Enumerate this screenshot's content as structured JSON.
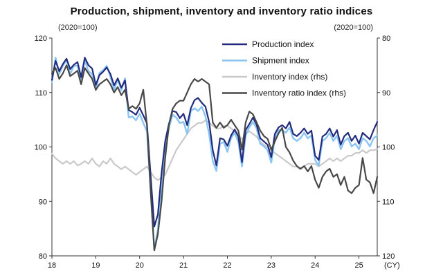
{
  "chart_data": {
    "type": "line",
    "title": "Production, shipment, inventory and inventory ratio indices",
    "left_axis": {
      "label": "(2020=100)",
      "min": 80,
      "max": 120,
      "ticks": [
        120,
        110,
        100,
        90,
        80
      ],
      "inverted": false
    },
    "right_axis": {
      "label": "(2020=100)",
      "min": 80,
      "max": 120,
      "ticks": [
        80,
        90,
        100,
        110,
        120
      ],
      "inverted": true
    },
    "x_axis": {
      "start_year": 2018,
      "points_per_year": 12,
      "tick_years": [
        2018,
        2019,
        2020,
        2021,
        2022,
        2023,
        2024,
        2025
      ],
      "tick_labels": [
        "18",
        "19",
        "20",
        "21",
        "22",
        "23",
        "24",
        "25"
      ],
      "suffix_label": "(CY)"
    },
    "grid": false,
    "legend_position": "upper-center-inside",
    "draw_order": [
      2,
      1,
      0,
      3
    ],
    "series": [
      {
        "id": "production",
        "name": "Production index",
        "axis": "left",
        "color": "#232c7c",
        "width": 2.2,
        "values": [
          112.3,
          115.8,
          113.9,
          115.2,
          116.2,
          114.3,
          115.1,
          115.6,
          112.8,
          116.4,
          115.0,
          114.4,
          111.4,
          113.2,
          113.8,
          114.6,
          113.4,
          111.3,
          112.6,
          110.9,
          112.2,
          106.8,
          106.4,
          105.9,
          107.2,
          105.8,
          104.3,
          94.8,
          85.4,
          87.6,
          95.2,
          101.1,
          104.2,
          106.6,
          106.4,
          105.3,
          106.1,
          104.0,
          107.1,
          108.6,
          109.0,
          108.1,
          107.4,
          104.6,
          99.4,
          96.6,
          101.6,
          101.4,
          100.2,
          102.1,
          103.2,
          101.9,
          97.2,
          103.1,
          104.2,
          105.4,
          104.1,
          101.6,
          101.0,
          100.4,
          98.1,
          102.4,
          103.6,
          104.0,
          103.4,
          104.6,
          102.4,
          102.0,
          102.6,
          103.4,
          102.4,
          103.0,
          98.4,
          97.6,
          101.9,
          102.4,
          103.4,
          101.9,
          103.1,
          100.4,
          102.0,
          102.6,
          101.1,
          102.1,
          100.6,
          102.6,
          102.0,
          101.4,
          103.1,
          104.6
        ]
      },
      {
        "id": "shipment",
        "name": "Shipment index",
        "axis": "left",
        "color": "#89c4f4",
        "width": 2.4,
        "values": [
          111.9,
          116.4,
          113.4,
          114.9,
          116.0,
          113.4,
          114.9,
          114.9,
          112.4,
          115.9,
          113.9,
          113.4,
          110.4,
          113.6,
          114.1,
          114.9,
          112.9,
          110.4,
          112.4,
          110.4,
          112.6,
          105.4,
          105.6,
          104.9,
          106.1,
          104.4,
          102.9,
          91.9,
          81.2,
          84.9,
          93.4,
          99.4,
          103.4,
          105.9,
          105.4,
          104.4,
          104.6,
          102.4,
          106.6,
          107.1,
          106.6,
          107.4,
          105.6,
          102.4,
          97.4,
          95.6,
          100.6,
          100.9,
          99.1,
          101.6,
          102.6,
          100.9,
          96.4,
          102.1,
          103.6,
          104.6,
          103.4,
          100.6,
          100.1,
          99.4,
          97.1,
          101.6,
          103.1,
          103.1,
          102.6,
          103.6,
          101.6,
          101.1,
          101.6,
          102.6,
          101.6,
          102.1,
          97.6,
          96.6,
          101.1,
          101.6,
          102.6,
          101.1,
          102.1,
          99.6,
          101.1,
          101.6,
          100.1,
          100.6,
          99.6,
          101.6,
          101.1,
          100.1,
          101.6,
          102.1
        ]
      },
      {
        "id": "inventory",
        "name": "Inventory index (rhs)",
        "axis": "right",
        "color": "#c9c9c9",
        "width": 2.2,
        "values": [
          101.2,
          102.1,
          102.6,
          103.1,
          102.6,
          103.1,
          102.6,
          103.4,
          103.1,
          102.6,
          103.1,
          102.1,
          103.1,
          103.6,
          102.6,
          103.1,
          102.1,
          103.1,
          103.6,
          104.1,
          103.6,
          104.1,
          104.6,
          105.1,
          104.6,
          104.1,
          103.6,
          104.6,
          105.6,
          106.1,
          105.6,
          105.1,
          103.6,
          102.1,
          100.6,
          99.6,
          98.6,
          97.6,
          96.6,
          96.1,
          95.6,
          95.6,
          95.1,
          95.6,
          96.1,
          96.6,
          96.6,
          96.1,
          96.1,
          96.6,
          97.1,
          97.6,
          98.6,
          97.6,
          97.1,
          97.6,
          98.1,
          99.1,
          99.6,
          100.1,
          100.6,
          101.1,
          101.6,
          102.1,
          102.6,
          103.1,
          103.6,
          103.6,
          104.1,
          103.6,
          103.1,
          103.1,
          103.1,
          103.6,
          103.1,
          102.6,
          102.1,
          102.6,
          102.1,
          102.6,
          102.1,
          101.6,
          101.6,
          101.1,
          101.1,
          100.6,
          101.1,
          100.6,
          100.6,
          100.4
        ]
      },
      {
        "id": "inventory-ratio",
        "name": "Inventory ratio index (rhs)",
        "axis": "right",
        "color": "#484848",
        "width": 2.2,
        "values": [
          86.5,
          85.5,
          87.5,
          86.5,
          85.0,
          87.0,
          86.5,
          86.0,
          88.5,
          85.5,
          86.5,
          87.5,
          89.5,
          88.5,
          88.0,
          87.5,
          88.5,
          90.0,
          89.0,
          90.5,
          89.5,
          93.0,
          92.5,
          93.0,
          92.0,
          89.5,
          96.0,
          108.0,
          119.0,
          116.0,
          110.0,
          102.0,
          96.0,
          93.0,
          92.0,
          91.5,
          91.5,
          90.0,
          88.5,
          87.5,
          88.0,
          87.5,
          88.0,
          88.5,
          95.5,
          96.5,
          95.5,
          96.5,
          96.0,
          95.0,
          96.0,
          97.0,
          100.5,
          95.5,
          93.5,
          94.0,
          95.5,
          97.0,
          98.0,
          98.5,
          100.5,
          99.0,
          97.5,
          96.5,
          100.0,
          101.0,
          102.5,
          103.5,
          104.0,
          103.5,
          104.5,
          103.5,
          106.0,
          107.5,
          105.5,
          104.5,
          104.0,
          105.5,
          105.0,
          107.0,
          105.5,
          108.0,
          108.5,
          107.5,
          107.0,
          102.0,
          106.0,
          106.5,
          108.5,
          105.5
        ]
      }
    ]
  }
}
